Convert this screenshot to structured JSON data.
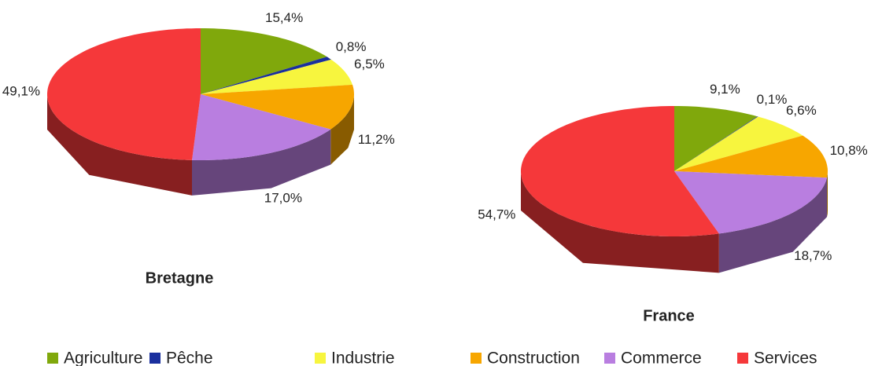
{
  "chart_data": [
    {
      "type": "pie",
      "title": "Bretagne",
      "categories": [
        "Agriculture",
        "Pêche",
        "Industrie",
        "Construction",
        "Commerce",
        "Services"
      ],
      "values": [
        15.4,
        0.8,
        6.5,
        11.2,
        17.0,
        49.1
      ],
      "value_labels": [
        "15,4%",
        "0,8%",
        "6,5%",
        "11,2%",
        "17,0%",
        "49,1%"
      ],
      "colors": [
        "#80a80c",
        "#1a2f9e",
        "#f7f53e",
        "#f7a600",
        "#b97ee0",
        "#f5383a"
      ]
    },
    {
      "type": "pie",
      "title": "France",
      "categories": [
        "Agriculture",
        "Pêche",
        "Industrie",
        "Construction",
        "Commerce",
        "Services"
      ],
      "values": [
        9.1,
        0.1,
        6.6,
        10.8,
        18.7,
        54.7
      ],
      "value_labels": [
        "9,1%",
        "0,1%",
        "6,6%",
        "10,8%",
        "18,7%",
        "54,7%"
      ],
      "colors": [
        "#80a80c",
        "#1a2f9e",
        "#f7f53e",
        "#f7a600",
        "#b97ee0",
        "#f5383a"
      ]
    }
  ]
}
